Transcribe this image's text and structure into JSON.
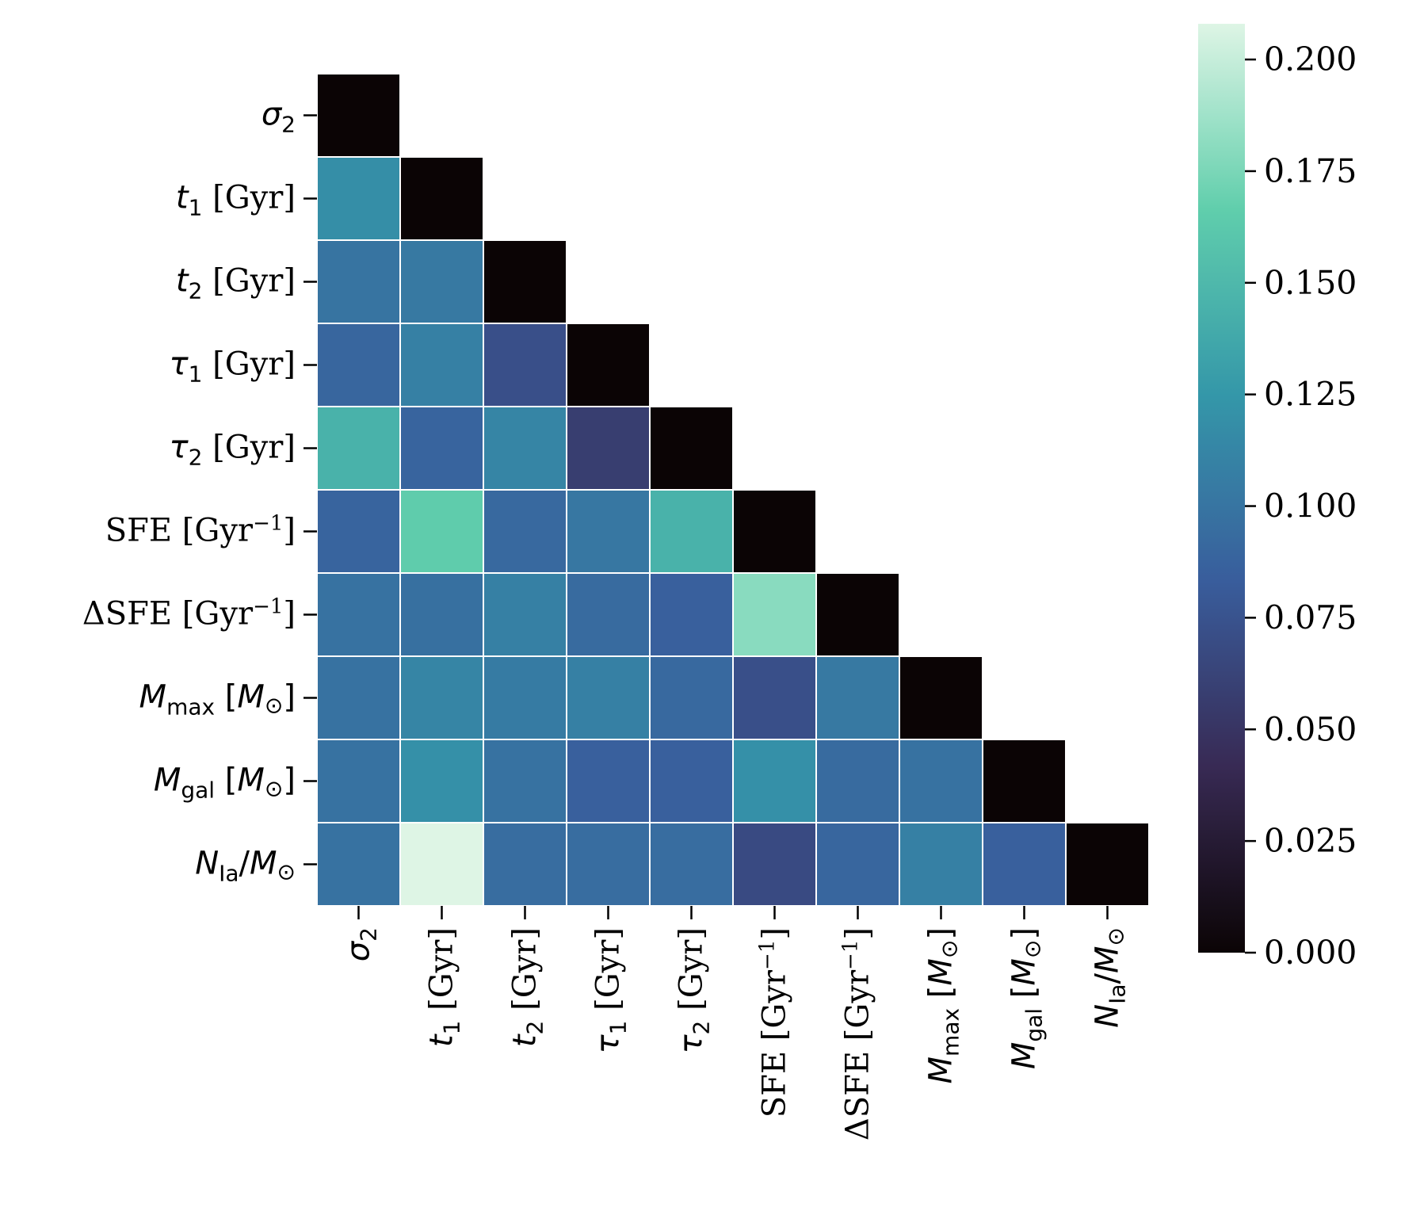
{
  "chart_data": {
    "type": "heatmap",
    "title": "",
    "xlabel": "",
    "ylabel": "",
    "labels": [
      {
        "sym": "σ",
        "sub": "2",
        "unit": "",
        "unitSup": ""
      },
      {
        "sym": "t",
        "sub": "1",
        "unit": " [Gyr]",
        "unitSup": ""
      },
      {
        "sym": "t",
        "sub": "2",
        "unit": " [Gyr]",
        "unitSup": ""
      },
      {
        "sym": "τ",
        "sub": "1",
        "unit": " [Gyr]",
        "unitSup": ""
      },
      {
        "sym": "τ",
        "sub": "2",
        "unit": " [Gyr]",
        "unitSup": ""
      },
      {
        "sym": "",
        "sub": "",
        "unit": "SFE [Gyr",
        "unitSup": "−1"
      },
      {
        "sym": "",
        "sub": "",
        "unit": "ΔSFE [Gyr",
        "unitSup": "−1"
      },
      {
        "sym": "M",
        "sub": "max",
        "unit": " [M",
        "unitSup": "⊙"
      },
      {
        "sym": "M",
        "sub": "gal",
        "unit": " [M",
        "unitSup": "⊙"
      },
      {
        "sym": "N",
        "sub": "Ia",
        "unit": "/M",
        "unitSup": "⊙"
      }
    ],
    "label_texts": [
      "σ2",
      "t1 [Gyr]",
      "t2 [Gyr]",
      "τ1 [Gyr]",
      "τ2 [Gyr]",
      "SFE [Gyr−1]",
      "ΔSFE [Gyr−1]",
      "Mmax [M⊙]",
      "Mgal [M⊙]",
      "NIa/M⊙"
    ],
    "mask": "upper triangle hidden, diagonal shown as 0",
    "values": [
      [
        0.0
      ],
      [
        0.118,
        0.0
      ],
      [
        0.1,
        0.103,
        0.0
      ],
      [
        0.09,
        0.108,
        0.072,
        0.0
      ],
      [
        0.145,
        0.088,
        0.112,
        0.058,
        0.0
      ],
      [
        0.088,
        0.165,
        0.092,
        0.102,
        0.145,
        0.0
      ],
      [
        0.098,
        0.097,
        0.108,
        0.093,
        0.085,
        0.18,
        0.0
      ],
      [
        0.098,
        0.112,
        0.105,
        0.108,
        0.092,
        0.072,
        0.103,
        0.0
      ],
      [
        0.098,
        0.12,
        0.098,
        0.085,
        0.085,
        0.12,
        0.093,
        0.098,
        0.0
      ],
      [
        0.098,
        0.208,
        0.095,
        0.095,
        0.095,
        0.068,
        0.09,
        0.108,
        0.085,
        0.0
      ]
    ],
    "colorbar": {
      "vmin": 0.0,
      "vmax": 0.208,
      "ticks": [
        0.0,
        0.025,
        0.05,
        0.075,
        0.1,
        0.125,
        0.15,
        0.175,
        0.2
      ],
      "tick_labels": [
        "0.000",
        "0.025",
        "0.050",
        "0.075",
        "0.100",
        "0.125",
        "0.150",
        "0.175",
        "0.200"
      ]
    },
    "colormap": [
      "#0b0405",
      "#382a54",
      "#395d9c",
      "#3497a9",
      "#60ceac",
      "#def5e5"
    ]
  }
}
